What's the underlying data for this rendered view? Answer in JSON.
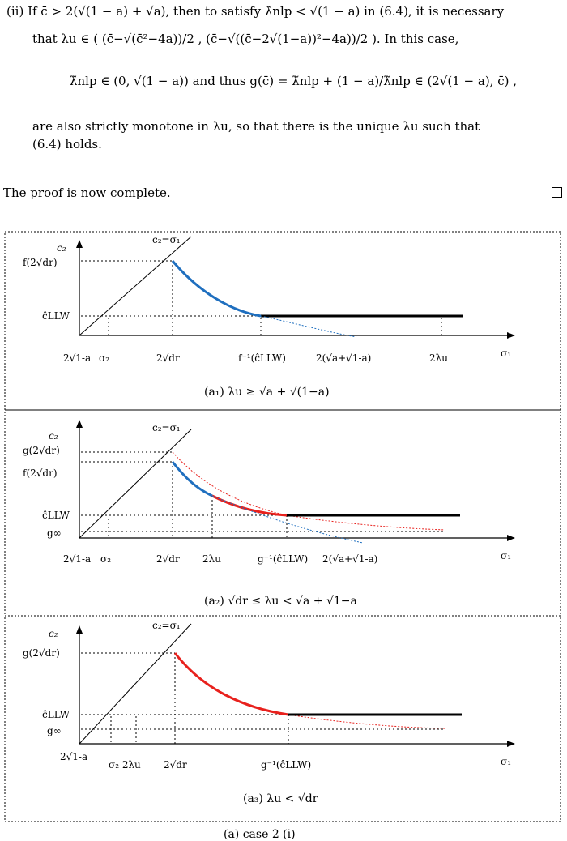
{
  "text": {
    "item_ii_line1": "(ii)  If c̄ > 2(√(1 − a) + √a), then to satisfy λ̃nlp < √(1 − a) in (6.4), it is necessary",
    "item_ii_line2": "that λu ∈ ( (c̄−√(c̄²−4a))/2 , (c̄−√((c̄−2√(1−a))²−4a))/2 ). In this case,",
    "display_eq": "λ̃nlp ∈ (0, √(1 − a))   and thus   g(c̄) = λ̃nlp + (1 − a)/λ̃nlp ∈ (2√(1 − a), c̄) ,",
    "item_ii_line4": "are also strictly monotone in λu, so that there is the unique λu such that",
    "item_ii_line5": "(6.4) holds.",
    "proof_end": "The proof is now complete."
  },
  "figure": {
    "panels": [
      {
        "caption": "(a₁)  λu ≥ √a + √(1−a)",
        "y_axis_label": "c₂",
        "x_axis_label": "σ₁",
        "diag_label": "c₂=σ₁",
        "y_ticks": [
          "f(2√dr)",
          "ĉLLW"
        ],
        "x_ticks": [
          "2√1-a",
          "σ₂",
          "2√dr",
          "f⁻¹(ĉLLW)",
          "2(√a+√1-a)",
          "2λu"
        ],
        "curves": [
          "blue",
          "black"
        ],
        "colors": {
          "blue": "#1f6fbf",
          "red": "#e8211d",
          "black": "#000000"
        }
      },
      {
        "caption": "(a₂)  √dr ≤ λu < √a + √1−a",
        "y_axis_label": "c₂",
        "x_axis_label": "σ₁",
        "diag_label": "c₂=σ₁",
        "y_ticks": [
          "g(2√dr)",
          "f(2√dr)",
          "ĉLLW",
          "g∞"
        ],
        "x_ticks": [
          "2√1-a",
          "σ₂",
          "2√dr",
          "2λu",
          "g⁻¹(ĉLLW)",
          "2(√a+√1-a)"
        ],
        "curves": [
          "blue",
          "red",
          "black"
        ],
        "colors": {
          "blue": "#1f6fbf",
          "red": "#e8211d",
          "black": "#000000"
        }
      },
      {
        "caption": "(a₃)  λu < √dr",
        "y_axis_label": "c₂",
        "x_axis_label": "σ₁",
        "diag_label": "c₂=σ₁",
        "y_ticks": [
          "g(2√dr)",
          "ĉLLW",
          "g∞"
        ],
        "x_ticks": [
          "2√1-a",
          "σ₂ 2λu",
          "2√dr",
          "g⁻¹(ĉLLW)"
        ],
        "curves": [
          "red",
          "black"
        ],
        "colors": {
          "blue": "#1f6fbf",
          "red": "#e8211d",
          "black": "#000000"
        }
      }
    ],
    "bottom_caption": "(a) case 2 (i)"
  }
}
